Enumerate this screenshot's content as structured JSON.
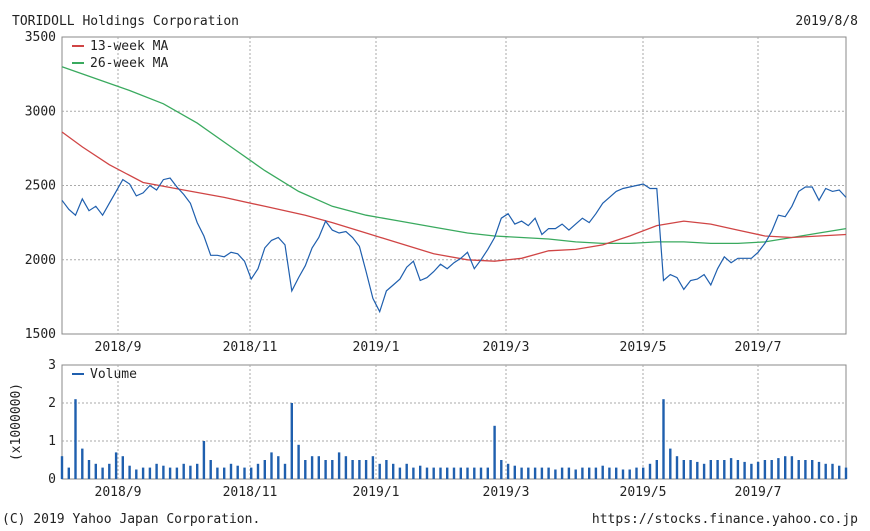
{
  "header": {
    "title": "TORIDOLL Holdings Corporation",
    "date": "2019/8/8"
  },
  "footer": {
    "copyright": "(C) 2019 Yahoo Japan Corporation.",
    "url": "https://stocks.finance.yahoo.co.jp"
  },
  "chart_data": [
    {
      "type": "line",
      "ylim": [
        1500,
        3500
      ],
      "yticks": [
        "3500",
        "3000",
        "2500",
        "2000",
        "1500"
      ],
      "xticks": [
        "2018/9",
        "2018/11",
        "2019/1",
        "2019/3",
        "2019/5",
        "2019/7"
      ],
      "grid": true,
      "legend": "top-left",
      "colors": {
        "price": "#1f5fae",
        "ma13": "#d04545",
        "ma26": "#3aaa5f"
      },
      "series": [
        {
          "name": "",
          "key": "price",
          "points": [
            [
              0,
              2400
            ],
            [
              1,
              2340
            ],
            [
              2,
              2300
            ],
            [
              3,
              2410
            ],
            [
              4,
              2330
            ],
            [
              5,
              2360
            ],
            [
              6,
              2300
            ],
            [
              7,
              2380
            ],
            [
              8,
              2460
            ],
            [
              9,
              2540
            ],
            [
              10,
              2510
            ],
            [
              11,
              2430
            ],
            [
              12,
              2450
            ],
            [
              13,
              2500
            ],
            [
              14,
              2470
            ],
            [
              15,
              2540
            ],
            [
              16,
              2550
            ],
            [
              17,
              2490
            ],
            [
              18,
              2440
            ],
            [
              19,
              2380
            ],
            [
              20,
              2250
            ],
            [
              21,
              2160
            ],
            [
              22,
              2030
            ],
            [
              23,
              2030
            ],
            [
              24,
              2020
            ],
            [
              25,
              2050
            ],
            [
              26,
              2040
            ],
            [
              27,
              1990
            ],
            [
              28,
              1870
            ],
            [
              29,
              1940
            ],
            [
              30,
              2080
            ],
            [
              31,
              2130
            ],
            [
              32,
              2150
            ],
            [
              33,
              2100
            ],
            [
              34,
              1790
            ],
            [
              35,
              1880
            ],
            [
              36,
              1960
            ],
            [
              37,
              2080
            ],
            [
              38,
              2150
            ],
            [
              39,
              2260
            ],
            [
              40,
              2200
            ],
            [
              41,
              2180
            ],
            [
              42,
              2190
            ],
            [
              43,
              2150
            ],
            [
              44,
              2090
            ],
            [
              45,
              1920
            ],
            [
              46,
              1740
            ],
            [
              47,
              1650
            ],
            [
              48,
              1790
            ],
            [
              49,
              1830
            ],
            [
              50,
              1870
            ],
            [
              51,
              1950
            ],
            [
              52,
              1990
            ],
            [
              53,
              1860
            ],
            [
              54,
              1880
            ],
            [
              55,
              1920
            ],
            [
              56,
              1970
            ],
            [
              57,
              1940
            ],
            [
              58,
              1980
            ],
            [
              59,
              2010
            ],
            [
              60,
              2050
            ],
            [
              61,
              1940
            ],
            [
              62,
              2000
            ],
            [
              63,
              2070
            ],
            [
              64,
              2150
            ],
            [
              65,
              2280
            ],
            [
              66,
              2310
            ],
            [
              67,
              2240
            ],
            [
              68,
              2260
            ],
            [
              69,
              2230
            ],
            [
              70,
              2280
            ],
            [
              71,
              2170
            ],
            [
              72,
              2210
            ],
            [
              73,
              2210
            ],
            [
              74,
              2240
            ],
            [
              75,
              2200
            ],
            [
              76,
              2240
            ],
            [
              77,
              2280
            ],
            [
              78,
              2250
            ],
            [
              79,
              2310
            ],
            [
              80,
              2380
            ],
            [
              81,
              2420
            ],
            [
              82,
              2460
            ],
            [
              83,
              2480
            ],
            [
              84,
              2490
            ],
            [
              85,
              2500
            ],
            [
              86,
              2510
            ],
            [
              87,
              2480
            ],
            [
              88,
              2480
            ],
            [
              89,
              1860
            ],
            [
              90,
              1900
            ],
            [
              91,
              1880
            ],
            [
              92,
              1800
            ],
            [
              93,
              1860
            ],
            [
              94,
              1870
            ],
            [
              95,
              1900
            ],
            [
              96,
              1830
            ],
            [
              97,
              1940
            ],
            [
              98,
              2020
            ],
            [
              99,
              1980
            ],
            [
              100,
              2010
            ],
            [
              101,
              2010
            ],
            [
              102,
              2010
            ],
            [
              103,
              2050
            ],
            [
              104,
              2110
            ],
            [
              105,
              2190
            ],
            [
              106,
              2300
            ],
            [
              107,
              2290
            ],
            [
              108,
              2360
            ],
            [
              109,
              2460
            ],
            [
              110,
              2490
            ],
            [
              111,
              2490
            ],
            [
              112,
              2400
            ],
            [
              113,
              2480
            ],
            [
              114,
              2460
            ],
            [
              115,
              2470
            ],
            [
              116,
              2420
            ]
          ]
        },
        {
          "name": "13-week MA",
          "key": "ma13",
          "points": [
            [
              0,
              2860
            ],
            [
              3,
              2760
            ],
            [
              7,
              2640
            ],
            [
              12,
              2520
            ],
            [
              18,
              2470
            ],
            [
              24,
              2420
            ],
            [
              30,
              2360
            ],
            [
              36,
              2300
            ],
            [
              40,
              2250
            ],
            [
              45,
              2180
            ],
            [
              50,
              2110
            ],
            [
              55,
              2040
            ],
            [
              60,
              2000
            ],
            [
              64,
              1990
            ],
            [
              68,
              2010
            ],
            [
              72,
              2060
            ],
            [
              76,
              2070
            ],
            [
              80,
              2100
            ],
            [
              84,
              2160
            ],
            [
              88,
              2230
            ],
            [
              92,
              2260
            ],
            [
              96,
              2240
            ],
            [
              100,
              2200
            ],
            [
              104,
              2160
            ],
            [
              108,
              2150
            ],
            [
              112,
              2160
            ],
            [
              116,
              2170
            ]
          ]
        },
        {
          "name": "26-week MA",
          "key": "ma26",
          "points": [
            [
              0,
              3300
            ],
            [
              5,
              3220
            ],
            [
              10,
              3140
            ],
            [
              15,
              3050
            ],
            [
              20,
              2920
            ],
            [
              25,
              2760
            ],
            [
              30,
              2600
            ],
            [
              35,
              2460
            ],
            [
              40,
              2360
            ],
            [
              45,
              2300
            ],
            [
              50,
              2260
            ],
            [
              55,
              2220
            ],
            [
              60,
              2180
            ],
            [
              64,
              2160
            ],
            [
              68,
              2150
            ],
            [
              72,
              2140
            ],
            [
              76,
              2120
            ],
            [
              80,
              2110
            ],
            [
              84,
              2110
            ],
            [
              88,
              2120
            ],
            [
              92,
              2120
            ],
            [
              96,
              2110
            ],
            [
              100,
              2110
            ],
            [
              104,
              2120
            ],
            [
              108,
              2150
            ],
            [
              112,
              2180
            ],
            [
              116,
              2210
            ]
          ]
        }
      ]
    },
    {
      "type": "bar",
      "ylabel": "(x1000000)",
      "ylim": [
        0,
        3
      ],
      "yticks": [
        "3",
        "2",
        "1",
        "0"
      ],
      "xticks": [
        "2018/9",
        "2018/11",
        "2019/1",
        "2019/3",
        "2019/5",
        "2019/7"
      ],
      "grid": true,
      "legend": "top-left",
      "colors": {
        "volume": "#1f5fae"
      },
      "series": [
        {
          "name": "Volume",
          "values": [
            0.6,
            0.3,
            2.1,
            0.8,
            0.5,
            0.4,
            0.3,
            0.4,
            0.7,
            0.6,
            0.35,
            0.25,
            0.3,
            0.3,
            0.4,
            0.35,
            0.3,
            0.3,
            0.4,
            0.35,
            0.4,
            1.0,
            0.5,
            0.3,
            0.3,
            0.4,
            0.35,
            0.3,
            0.3,
            0.4,
            0.5,
            0.7,
            0.6,
            0.4,
            2.0,
            0.9,
            0.5,
            0.6,
            0.6,
            0.5,
            0.5,
            0.7,
            0.6,
            0.5,
            0.5,
            0.5,
            0.6,
            0.4,
            0.5,
            0.4,
            0.3,
            0.4,
            0.3,
            0.35,
            0.3,
            0.3,
            0.3,
            0.3,
            0.3,
            0.3,
            0.3,
            0.3,
            0.3,
            0.3,
            1.4,
            0.5,
            0.4,
            0.35,
            0.3,
            0.3,
            0.3,
            0.3,
            0.3,
            0.25,
            0.3,
            0.3,
            0.25,
            0.3,
            0.3,
            0.3,
            0.35,
            0.3,
            0.3,
            0.25,
            0.25,
            0.3,
            0.3,
            0.4,
            0.5,
            2.1,
            0.8,
            0.6,
            0.5,
            0.5,
            0.45,
            0.4,
            0.5,
            0.5,
            0.5,
            0.55,
            0.5,
            0.45,
            0.4,
            0.45,
            0.5,
            0.5,
            0.55,
            0.6,
            0.6,
            0.5,
            0.5,
            0.5,
            0.45,
            0.4,
            0.4,
            0.35,
            0.3
          ]
        }
      ]
    }
  ]
}
